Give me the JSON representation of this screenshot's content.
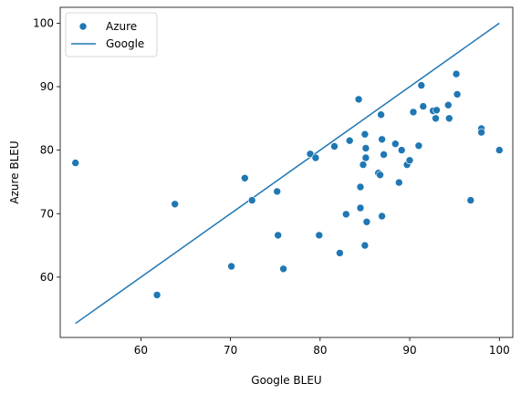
{
  "chart_data": {
    "type": "scatter",
    "title": "",
    "xlabel": "Google BLEU",
    "ylabel": "Azure BLEU",
    "xlim": [
      51.0,
      101.5
    ],
    "ylim": [
      50.5,
      102.5
    ],
    "xticks": [
      60,
      70,
      80,
      90,
      100
    ],
    "yticks": [
      60,
      70,
      80,
      90,
      100
    ],
    "grid": false,
    "legend_position": "top-left",
    "series": [
      {
        "name": "Azure",
        "kind": "scatter",
        "color": "#1f77b4",
        "points": [
          [
            52.7,
            78.0
          ],
          [
            61.8,
            57.2
          ],
          [
            63.8,
            71.5
          ],
          [
            70.1,
            61.7
          ],
          [
            71.6,
            75.6
          ],
          [
            72.4,
            72.1
          ],
          [
            75.2,
            73.5
          ],
          [
            75.3,
            66.6
          ],
          [
            75.9,
            61.3
          ],
          [
            78.9,
            79.4
          ],
          [
            79.5,
            78.8
          ],
          [
            79.9,
            66.6
          ],
          [
            81.6,
            80.6
          ],
          [
            82.2,
            63.8
          ],
          [
            82.9,
            69.9
          ],
          [
            83.3,
            81.5
          ],
          [
            84.3,
            88.0
          ],
          [
            84.5,
            74.2
          ],
          [
            84.5,
            70.9
          ],
          [
            84.8,
            77.7
          ],
          [
            85.0,
            82.5
          ],
          [
            85.1,
            80.3
          ],
          [
            85.1,
            78.8
          ],
          [
            85.0,
            65.0
          ],
          [
            85.2,
            68.7
          ],
          [
            86.5,
            76.4
          ],
          [
            86.7,
            76.1
          ],
          [
            86.8,
            85.6
          ],
          [
            86.9,
            81.7
          ],
          [
            87.1,
            79.3
          ],
          [
            86.9,
            69.6
          ],
          [
            88.4,
            81.0
          ],
          [
            88.8,
            74.9
          ],
          [
            89.1,
            80.0
          ],
          [
            89.7,
            77.7
          ],
          [
            90.0,
            78.4
          ],
          [
            90.4,
            86.0
          ],
          [
            91.0,
            80.7
          ],
          [
            91.3,
            90.2
          ],
          [
            91.5,
            86.9
          ],
          [
            92.6,
            86.2
          ],
          [
            93.0,
            86.3
          ],
          [
            92.9,
            85.0
          ],
          [
            94.3,
            87.1
          ],
          [
            94.4,
            85.0
          ],
          [
            95.2,
            92.0
          ],
          [
            95.3,
            88.8
          ],
          [
            96.8,
            72.1
          ],
          [
            98.0,
            83.4
          ],
          [
            98.0,
            82.8
          ],
          [
            100.0,
            80.0
          ]
        ]
      },
      {
        "name": "Google",
        "kind": "line",
        "color": "#1f77b4",
        "points": [
          [
            52.7,
            52.7
          ],
          [
            100.0,
            100.0
          ]
        ]
      }
    ]
  }
}
